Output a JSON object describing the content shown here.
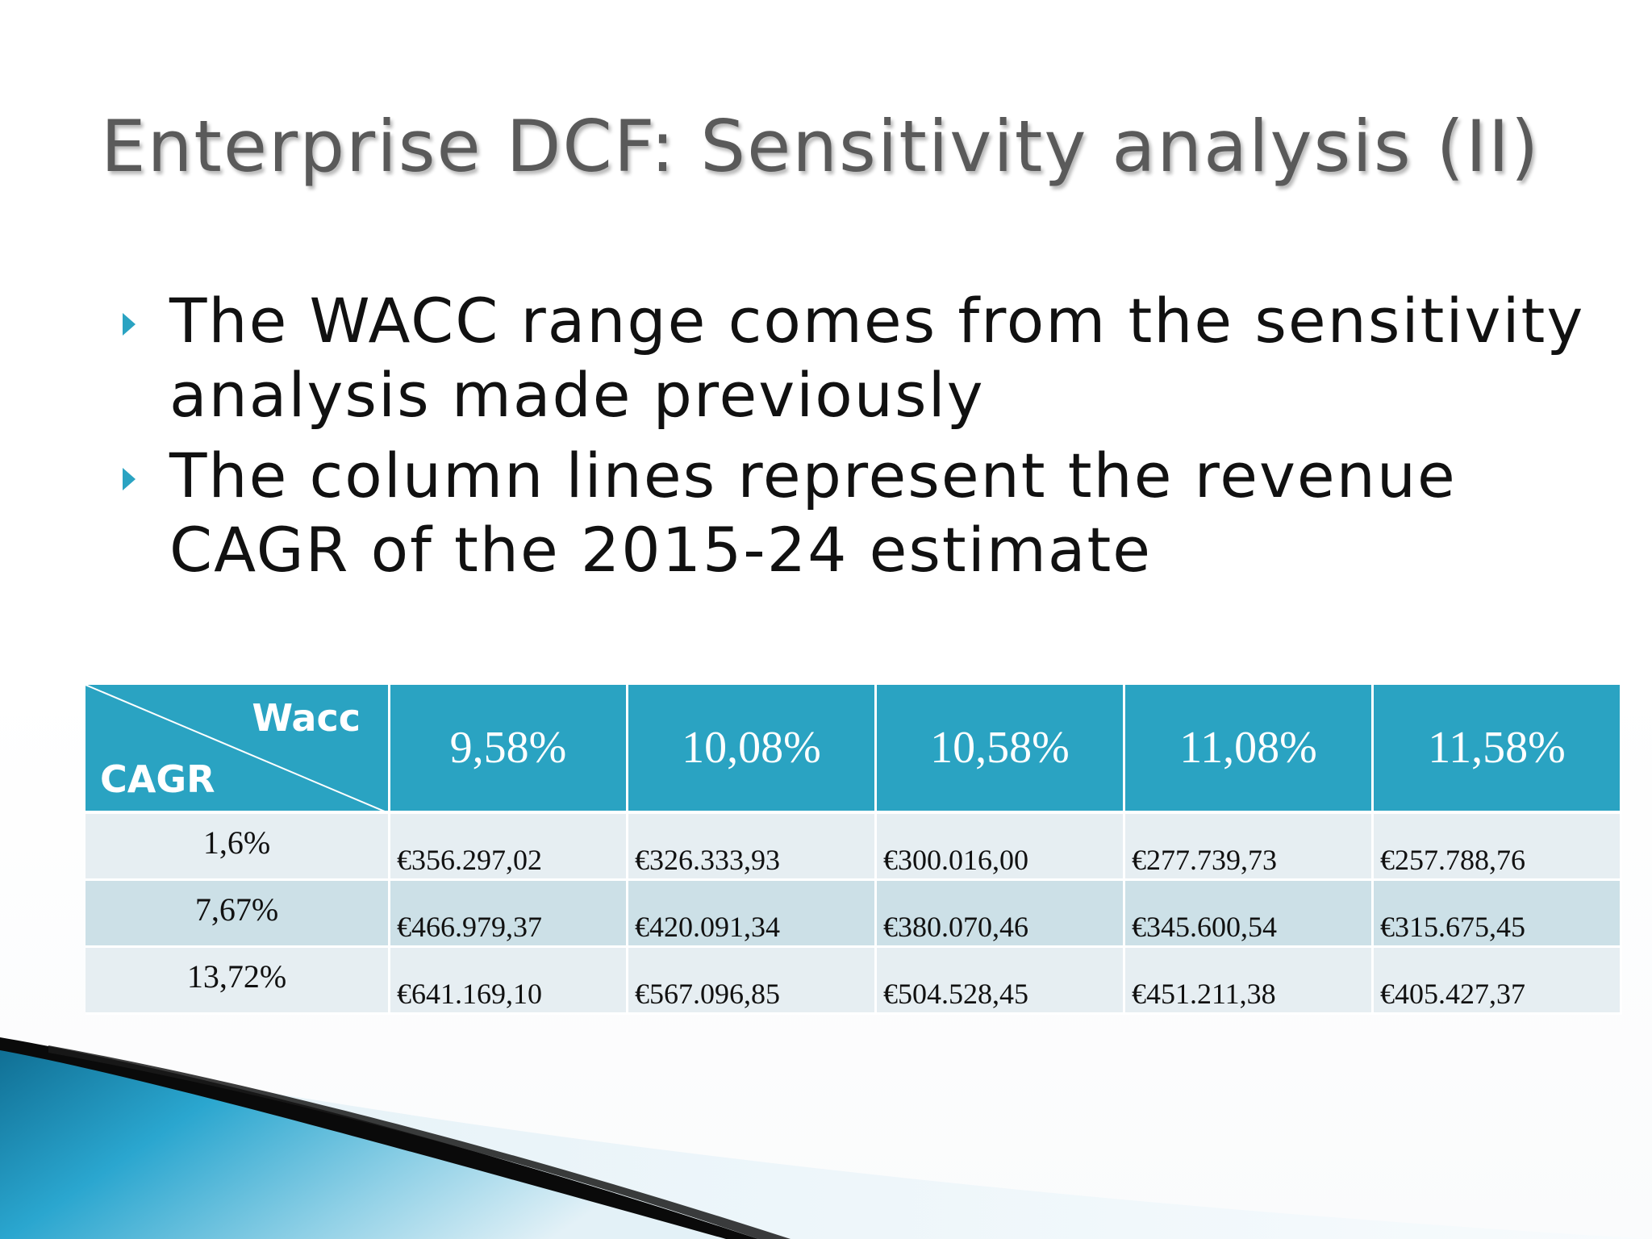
{
  "slide": {
    "title": "Enterprise DCF: Sensitivity analysis (II)",
    "bullets": [
      "The WACC range comes from the sensitivity analysis made previously",
      "The column lines represent the revenue CAGR of the 2015-24 estimate"
    ],
    "accent_color": "#2aa3c2"
  },
  "table": {
    "corner_top_label": "Wacc",
    "corner_bottom_label": "CAGR",
    "columns": [
      "9,58%",
      "10,08%",
      "10,58%",
      "11,08%",
      "11,58%"
    ],
    "rows": [
      {
        "label": "1,6%",
        "values": [
          "€356.297,02",
          "€326.333,93",
          "€300.016,00",
          "€277.739,73",
          "€257.788,76"
        ]
      },
      {
        "label": "7,67%",
        "values": [
          "€466.979,37",
          "€420.091,34",
          "€380.070,46",
          "€345.600,54",
          "€315.675,45"
        ]
      },
      {
        "label": "13,72%",
        "values": [
          "€641.169,10",
          "€567.096,85",
          "€504.528,45",
          "€451.211,38",
          "€405.427,37"
        ]
      }
    ]
  }
}
